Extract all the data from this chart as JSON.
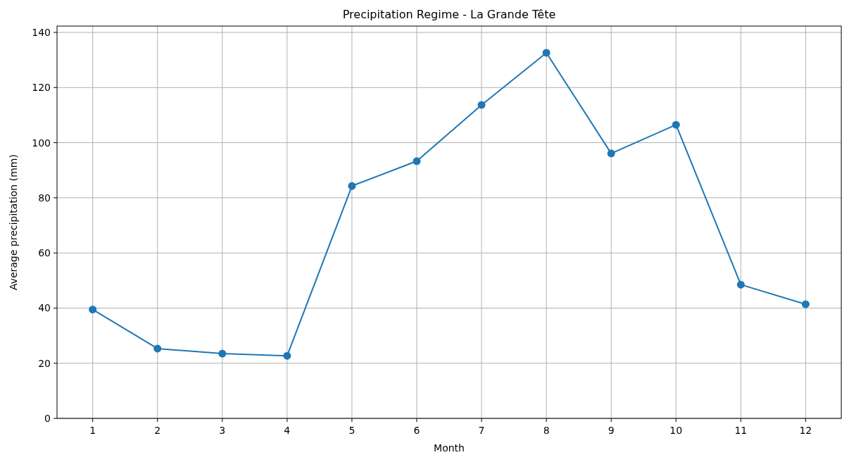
{
  "chart_data": {
    "type": "line",
    "title": "Precipitation Regime - La Grande Tête",
    "xlabel": "Month",
    "ylabel": "Average precipitation (mm)",
    "x": [
      1,
      2,
      3,
      4,
      5,
      6,
      7,
      8,
      9,
      10,
      11,
      12
    ],
    "series": [
      {
        "color": "#1f77b4",
        "values": [
          39.5,
          25.3,
          23.5,
          22.7,
          84.3,
          93.3,
          113.7,
          132.6,
          96.1,
          106.5,
          48.5,
          41.4
        ]
      }
    ],
    "xlim": [
      0.45,
      12.55
    ],
    "xticks": [
      1,
      2,
      3,
      4,
      5,
      6,
      7,
      8,
      9,
      10,
      11,
      12
    ],
    "ylim": [
      0,
      142.3
    ],
    "yticks": [
      0,
      20,
      40,
      60,
      80,
      100,
      120,
      140
    ],
    "grid": true,
    "marker": "circle",
    "line_style": "solid"
  }
}
